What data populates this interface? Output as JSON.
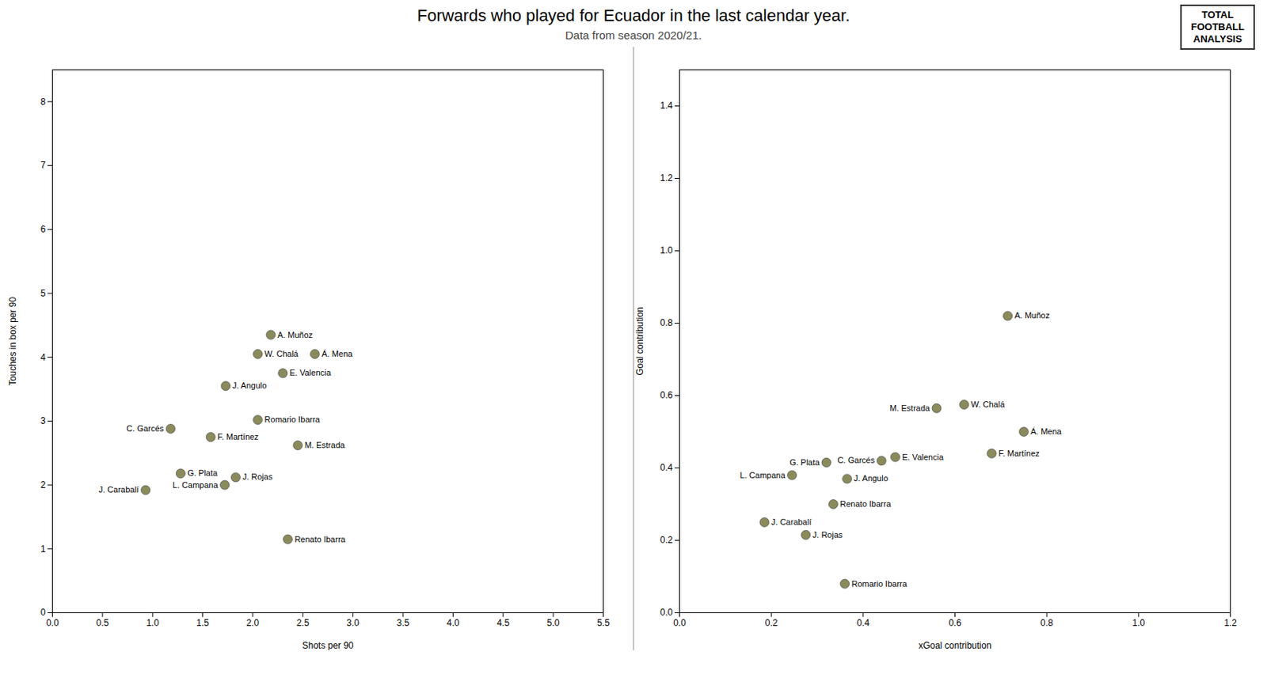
{
  "title": "Forwards who played for Ecuador in the last calendar year.",
  "subtitle": "Data from season 2020/21.",
  "annotations": [
    "TOTAL",
    "FOOTBALL",
    "ANALYSIS"
  ],
  "chart_data": [
    {
      "type": "scatter",
      "xlabel": "Shots per 90",
      "ylabel": "Touches in box per 90",
      "color": "#8b8b5a",
      "grid": false,
      "xlim": [
        0.0,
        5.5
      ],
      "ylim": [
        0.0,
        8.5
      ],
      "xticks": [
        {
          "value": 0,
          "label": "0.0"
        },
        0.5,
        {
          "value": 1,
          "label": "1.0"
        },
        1.5,
        {
          "value": 2,
          "label": "2.0"
        },
        2.5,
        {
          "value": 3,
          "label": "3.0"
        },
        3.5,
        {
          "value": 4,
          "label": "4.0"
        },
        4.5,
        {
          "value": 5,
          "label": "5.0"
        },
        5.5
      ],
      "yticks": [
        0,
        1,
        2,
        3,
        4,
        5,
        6,
        7,
        8
      ],
      "labels": [
        "A. Muñoz",
        "W. Chalá",
        "Á. Mena",
        "E. Valencia",
        "J. Angulo",
        "Romario Ibarra",
        "C. Garcés",
        "F. Martínez",
        "M. Estrada",
        "G. Plata",
        "J. Rojas",
        "L. Campana",
        "J. Carabalí",
        "Renato Ibarra"
      ],
      "x": [
        2.18,
        2.05,
        2.62,
        2.3,
        1.73,
        2.05,
        1.18,
        1.58,
        2.45,
        1.28,
        1.83,
        1.72,
        0.93,
        2.35
      ],
      "values": [
        4.35,
        4.05,
        4.05,
        3.75,
        3.55,
        3.02,
        2.88,
        2.75,
        2.62,
        2.18,
        2.12,
        2.0,
        1.92,
        1.15
      ]
    },
    {
      "type": "scatter",
      "xlabel": "xGoal contribution",
      "ylabel": "Goal contribution",
      "color": "#8b8b5a",
      "grid": false,
      "xlim": [
        0.0,
        1.2
      ],
      "ylim": [
        0.0,
        1.5
      ],
      "xticks": [
        {
          "value": 0,
          "label": "0.0"
        },
        0.2,
        0.4,
        0.6,
        0.8,
        {
          "value": 1,
          "label": "1.0"
        },
        1.2
      ],
      "yticks": [
        {
          "value": 0,
          "label": "0.0"
        },
        0.2,
        0.4,
        0.6,
        0.8,
        {
          "value": 1,
          "label": "1.0"
        },
        1.2,
        1.4
      ],
      "labels": [
        "A. Muñoz",
        "W. Chalá",
        "Á. Mena",
        "E. Valencia",
        "J. Angulo",
        "Romario Ibarra",
        "C. Garcés",
        "F. Martínez",
        "M. Estrada",
        "G. Plata",
        "J. Rojas",
        "L. Campana",
        "J. Carabalí",
        "Renato Ibarra"
      ],
      "x": [
        0.715,
        0.62,
        0.75,
        0.47,
        0.365,
        0.36,
        0.44,
        0.68,
        0.56,
        0.32,
        0.275,
        0.245,
        0.185,
        0.335
      ],
      "values": [
        0.82,
        0.575,
        0.5,
        0.43,
        0.37,
        0.08,
        0.42,
        0.44,
        0.565,
        0.415,
        0.215,
        0.38,
        0.25,
        0.3
      ]
    }
  ]
}
